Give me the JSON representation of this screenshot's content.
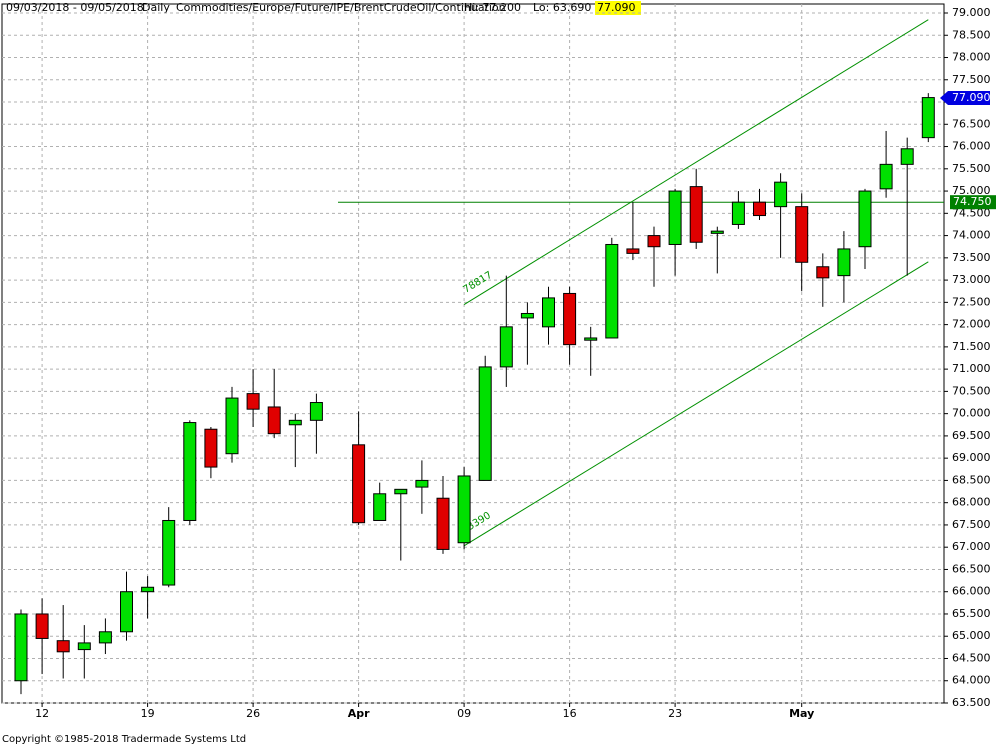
{
  "chart_data": {
    "type": "candlestick",
    "header": {
      "range": "09/03/2018 - 09/05/2018",
      "period": "Daily",
      "instrument": "Commodities/Europe/Future/IPE/BrentCrudeOil/Continuation",
      "hi": "Hi: 77.200",
      "lo": "Lo: 63.690",
      "last": "77.090"
    },
    "footer": "Copyright ©1985-2018 Tradermade Systems Ltd",
    "categories": [
      null,
      "12",
      null,
      null,
      null,
      null,
      "19",
      null,
      null,
      null,
      null,
      "26",
      null,
      null,
      null,
      null,
      "Apr",
      null,
      null,
      null,
      null,
      "09",
      null,
      null,
      null,
      null,
      "16",
      null,
      null,
      null,
      null,
      "23",
      null,
      null,
      null,
      null,
      null,
      "May",
      null,
      null,
      null,
      null,
      null,
      null
    ],
    "open": [
      64.0,
      65.5,
      64.9,
      64.7,
      64.85,
      65.1,
      66.0,
      66.15,
      67.6,
      69.65,
      69.1,
      70.45,
      70.15,
      69.75,
      69.85,
      null,
      69.3,
      67.6,
      68.2,
      68.35,
      68.1,
      67.1,
      68.5,
      71.05,
      72.15,
      71.95,
      72.7,
      71.65,
      71.7,
      73.7,
      74.0,
      73.8,
      75.1,
      74.05,
      74.25,
      74.75,
      74.65,
      74.65,
      73.3,
      73.1,
      73.75,
      75.05,
      75.6,
      76.2
    ],
    "high": [
      65.6,
      65.85,
      65.7,
      65.25,
      65.4,
      66.45,
      66.35,
      67.9,
      69.85,
      69.7,
      70.6,
      71.0,
      71.0,
      70.0,
      70.45,
      null,
      70.05,
      68.45,
      68.3,
      68.95,
      68.6,
      68.8,
      71.3,
      73.1,
      72.5,
      72.85,
      72.85,
      71.95,
      73.95,
      74.75,
      74.2,
      75.05,
      75.5,
      74.2,
      75.0,
      75.05,
      75.4,
      74.95,
      73.6,
      74.1,
      75.05,
      76.35,
      76.2,
      77.2
    ],
    "low": [
      63.7,
      64.15,
      64.05,
      64.05,
      64.6,
      64.9,
      65.4,
      66.1,
      67.5,
      68.55,
      68.9,
      69.7,
      69.45,
      68.8,
      69.1,
      null,
      67.5,
      67.6,
      66.7,
      67.75,
      66.85,
      66.95,
      68.5,
      70.6,
      71.1,
      71.55,
      71.1,
      70.85,
      71.7,
      73.45,
      72.85,
      73.1,
      73.7,
      73.15,
      74.15,
      74.35,
      73.5,
      72.75,
      72.4,
      72.5,
      73.25,
      74.85,
      73.1,
      76.1
    ],
    "close": [
      65.5,
      64.95,
      64.65,
      64.85,
      65.1,
      66.0,
      66.1,
      67.6,
      69.8,
      68.8,
      70.35,
      70.1,
      69.55,
      69.85,
      70.25,
      null,
      67.55,
      68.2,
      68.3,
      68.5,
      66.95,
      68.6,
      71.05,
      71.95,
      72.25,
      72.6,
      71.55,
      71.7,
      73.8,
      73.6,
      73.75,
      75.0,
      73.85,
      74.1,
      74.75,
      74.45,
      75.2,
      73.4,
      73.05,
      73.7,
      75.0,
      75.6,
      75.95,
      77.1
    ],
    "up_color": "#00e000",
    "down_color": "#e00000",
    "ylim": [
      63.5,
      79.0
    ],
    "yticks": [
      {
        "value": 63.5,
        "label": "63.500"
      },
      {
        "value": 64,
        "label": "64.000"
      },
      {
        "value": 64.5,
        "label": "64.500"
      },
      {
        "value": 65,
        "label": "65.000"
      },
      {
        "value": 65.5,
        "label": "65.500"
      },
      {
        "value": 66,
        "label": "66.000"
      },
      {
        "value": 66.5,
        "label": "66.500"
      },
      {
        "value": 67,
        "label": "67.000"
      },
      {
        "value": 67.5,
        "label": "67.500"
      },
      {
        "value": 68,
        "label": "68.000"
      },
      {
        "value": 68.5,
        "label": "68.500"
      },
      {
        "value": 69,
        "label": "69.000"
      },
      {
        "value": 69.5,
        "label": "69.500"
      },
      {
        "value": 70,
        "label": "70.000"
      },
      {
        "value": 70.5,
        "label": "70.500"
      },
      {
        "value": 71,
        "label": "71.000"
      },
      {
        "value": 71.5,
        "label": "71.500"
      },
      {
        "value": 72,
        "label": "72.000"
      },
      {
        "value": 72.5,
        "label": "72.500"
      },
      {
        "value": 73,
        "label": "73.000"
      },
      {
        "value": 73.5,
        "label": "73.500"
      },
      {
        "value": 74,
        "label": "74.000"
      },
      {
        "value": 74.5,
        "label": "74.500"
      },
      {
        "value": 75,
        "label": "75.000"
      },
      {
        "value": 75.5,
        "label": "75.500"
      },
      {
        "value": 76,
        "label": "76.000"
      },
      {
        "value": 76.5,
        "label": "76.500"
      },
      {
        "value": 77,
        "label": "77.000"
      },
      {
        "value": 77.5,
        "label": "77.500"
      },
      {
        "value": 78,
        "label": "78.000"
      },
      {
        "value": 78.5,
        "label": "78.500"
      },
      {
        "value": 79,
        "label": "79.000"
      }
    ],
    "grid": true,
    "hline": {
      "value": 74.75,
      "label": "74.750",
      "color": "#008000"
    },
    "last_price": {
      "value": 77.09,
      "label": "77.090",
      "color": "#0000e0"
    },
    "channel": {
      "color": "#009000",
      "upper": [
        72.45,
        78.85
      ],
      "lower": [
        67.03,
        73.41
      ],
      "upper_label": "78817",
      "lower_label": "3390"
    }
  }
}
